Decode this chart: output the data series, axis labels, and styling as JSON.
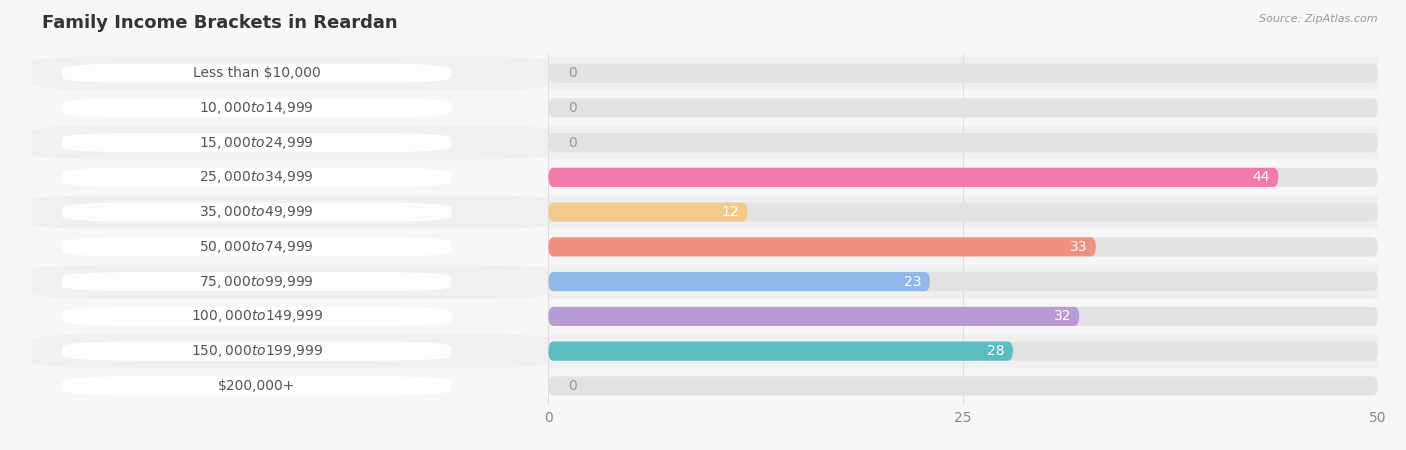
{
  "title": "Family Income Brackets in Reardan",
  "source": "Source: ZipAtlas.com",
  "categories": [
    "Less than $10,000",
    "$10,000 to $14,999",
    "$15,000 to $24,999",
    "$25,000 to $34,999",
    "$35,000 to $49,999",
    "$50,000 to $74,999",
    "$75,000 to $99,999",
    "$100,000 to $149,999",
    "$150,000 to $199,999",
    "$200,000+"
  ],
  "values": [
    0,
    0,
    0,
    44,
    12,
    33,
    23,
    32,
    28,
    0
  ],
  "bar_colors": [
    "#c9aed6",
    "#7ececa",
    "#b3aee8",
    "#f27aab",
    "#f5c98a",
    "#f09080",
    "#90b8e8",
    "#b89ad4",
    "#5bbcbf",
    "#c0b8e8"
  ],
  "background_color": "#f7f7f7",
  "row_colors": [
    "#f0f0f0",
    "#f7f7f7"
  ],
  "xlim": [
    0,
    50
  ],
  "xticks": [
    0,
    25,
    50
  ],
  "bar_height": 0.55,
  "label_fontsize": 10,
  "title_fontsize": 13,
  "source_fontsize": 8,
  "value_label_color_inside": "#ffffff",
  "value_label_color_outside": "#999999",
  "label_color": "#555555",
  "title_color": "#333333",
  "grid_color": "#dddddd",
  "row_separator_color": "#e0e0e0"
}
